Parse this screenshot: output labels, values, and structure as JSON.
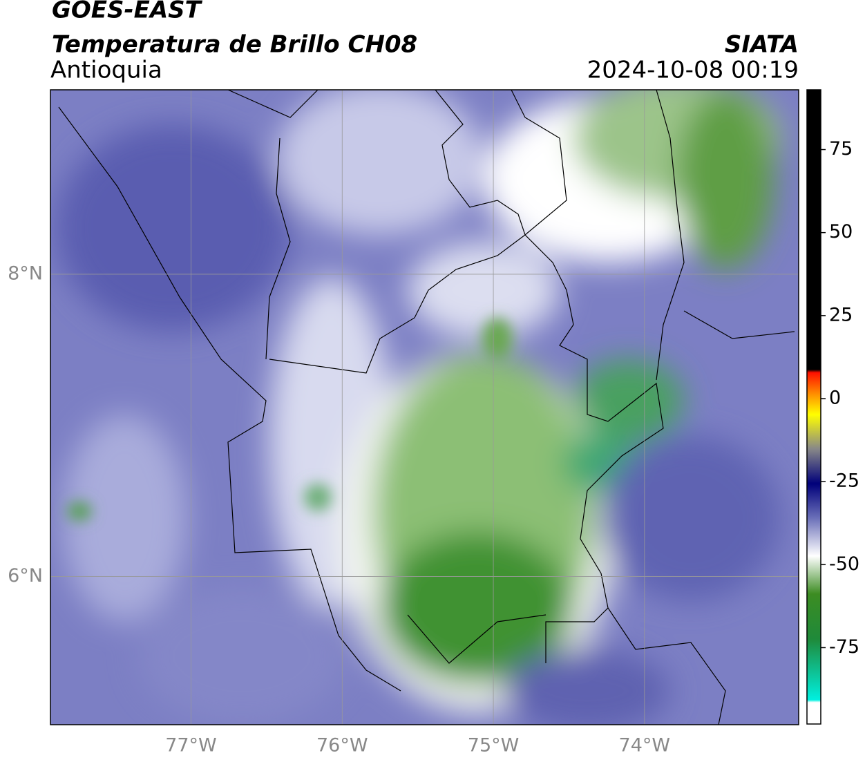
{
  "header": {
    "title": "GOES-EAST",
    "subtitle": "Temperatura de Brillo CH08",
    "region": "Antioquia",
    "source": "SIATA",
    "datetime": "2024-10-08 00:19"
  },
  "map": {
    "xlim": [
      -77.93,
      -72.98
    ],
    "ylim": [
      5.02,
      9.22
    ],
    "xticks": [
      {
        "value": -77,
        "label": "77°W"
      },
      {
        "value": -76,
        "label": "76°W"
      },
      {
        "value": -75,
        "label": "75°W"
      },
      {
        "value": -74,
        "label": "74°W"
      }
    ],
    "yticks": [
      {
        "value": 8,
        "label": "8°N"
      },
      {
        "value": 6,
        "label": "6°N"
      }
    ],
    "grid": true
  },
  "colorbar": {
    "lim": [
      -98,
      93
    ],
    "ticks": [
      75,
      50,
      25,
      0,
      -25,
      -50,
      -75
    ]
  }
}
